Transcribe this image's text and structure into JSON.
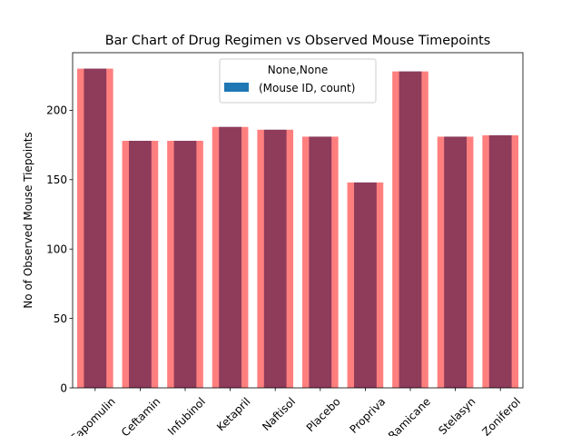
{
  "chart_data": {
    "type": "bar",
    "title": "Bar Chart of Drug Regimen vs Observed Mouse Timepoints",
    "xlabel": "",
    "ylabel": "No of Observed Mouse Tiepoints",
    "categories": [
      "Capomulin",
      "Ceftamin",
      "Infubinol",
      "Ketapril",
      "Naftisol",
      "Placebo",
      "Propriva",
      "Ramicane",
      "Stelasyn",
      "Zoniferol"
    ],
    "series": [
      {
        "name": "(Mouse ID, count)",
        "values": [
          230,
          178,
          178,
          188,
          186,
          181,
          148,
          228,
          181,
          182
        ],
        "color": "#1f77b4"
      }
    ],
    "overlay_color": "#ff0000",
    "overlay_alpha": 0.5,
    "yticks": [
      0,
      50,
      100,
      150,
      200
    ],
    "ylim": [
      0,
      241.5
    ],
    "legend": {
      "title": "None,None",
      "entries": [
        "(Mouse ID, count)"
      ],
      "placement": "top-center"
    },
    "grid": false,
    "x_tick_rotation": 45
  }
}
